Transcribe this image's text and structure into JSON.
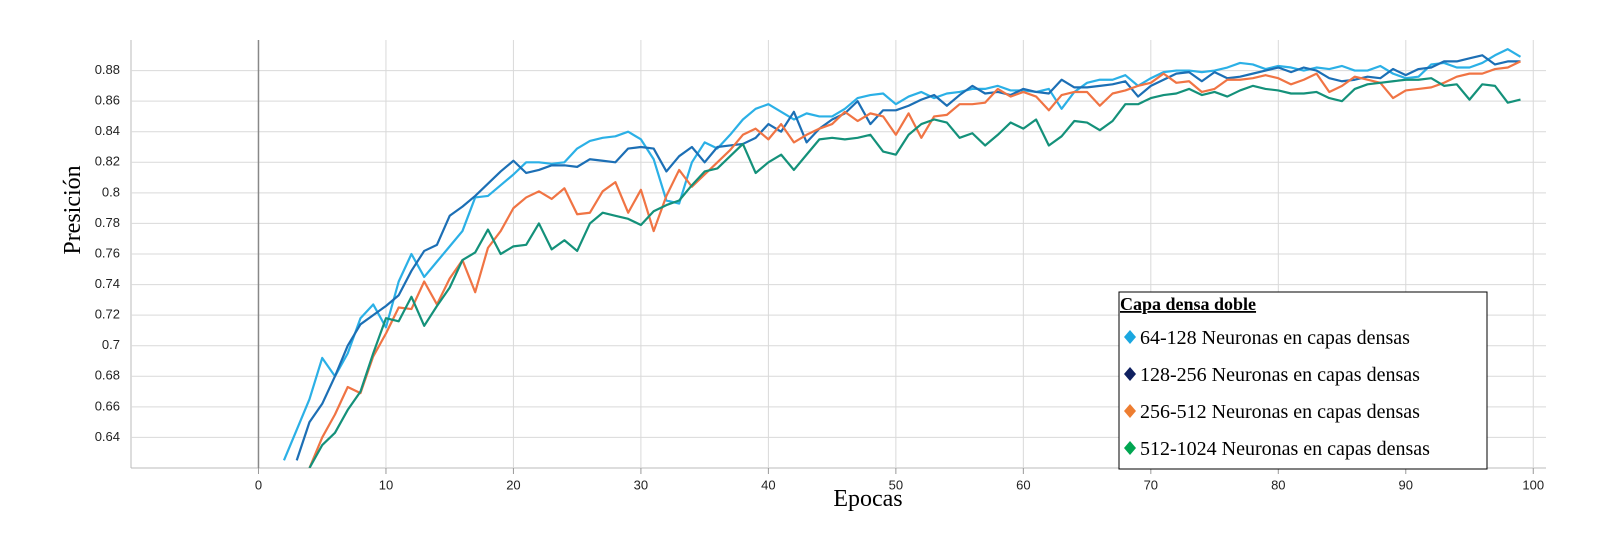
{
  "chart_data": {
    "type": "line",
    "x_label": "Epocas",
    "y_label": "Presición",
    "legend_title": "Capa densa doble",
    "xlim": [
      -10,
      101
    ],
    "ylim": [
      0.62,
      0.9
    ],
    "xticks": [
      0,
      10,
      20,
      30,
      40,
      50,
      60,
      70,
      80,
      90,
      100
    ],
    "yticks": [
      0.64,
      0.66,
      0.68,
      0.7,
      0.72,
      0.74,
      0.76,
      0.78,
      0.8,
      0.82,
      0.84,
      0.86,
      0.88
    ],
    "grid": true,
    "legend": "lower right",
    "x": [
      2,
      3,
      4,
      5,
      6,
      7,
      8,
      9,
      10,
      11,
      12,
      13,
      14,
      15,
      16,
      17,
      18,
      19,
      20,
      21,
      22,
      23,
      24,
      25,
      26,
      27,
      28,
      29,
      30,
      31,
      32,
      33,
      34,
      35,
      36,
      37,
      38,
      39,
      40,
      41,
      42,
      43,
      44,
      45,
      46,
      47,
      48,
      49,
      50,
      51,
      52,
      53,
      54,
      55,
      56,
      57,
      58,
      59,
      60,
      61,
      62,
      63,
      64,
      65,
      66,
      67,
      68,
      69,
      70,
      71,
      72,
      73,
      74,
      75,
      76,
      77,
      78,
      79,
      80,
      81,
      82,
      83,
      84,
      85,
      86,
      87,
      88,
      89,
      90,
      91,
      92,
      93,
      94,
      95,
      96,
      97,
      98,
      99
    ],
    "series": [
      {
        "name": "64-128 Neuronas en capas densas",
        "color": "#2bb0e6",
        "marker_color": "#1aa7e0",
        "values": [
          0.625,
          0.645,
          0.665,
          0.692,
          0.68,
          0.695,
          0.718,
          0.727,
          0.712,
          0.742,
          0.76,
          0.745,
          0.755,
          0.765,
          0.775,
          0.797,
          0.798,
          0.805,
          0.812,
          0.82,
          0.82,
          0.819,
          0.82,
          0.829,
          0.834,
          0.836,
          0.837,
          0.84,
          0.835,
          0.822,
          0.795,
          0.793,
          0.82,
          0.833,
          0.829,
          0.838,
          0.848,
          0.855,
          0.858,
          0.853,
          0.848,
          0.852,
          0.85,
          0.85,
          0.855,
          0.862,
          0.864,
          0.865,
          0.858,
          0.863,
          0.866,
          0.862,
          0.865,
          0.866,
          0.868,
          0.868,
          0.87,
          0.867,
          0.867,
          0.866,
          0.868,
          0.855,
          0.866,
          0.872,
          0.874,
          0.874,
          0.877,
          0.87,
          0.875,
          0.879,
          0.88,
          0.88,
          0.879,
          0.88,
          0.882,
          0.885,
          0.884,
          0.881,
          0.883,
          0.882,
          0.88,
          0.882,
          0.881,
          0.883,
          0.88,
          0.88,
          0.883,
          0.878,
          0.875,
          0.876,
          0.884,
          0.885,
          0.882,
          0.882,
          0.885,
          0.89,
          0.894,
          0.889
        ]
      },
      {
        "name": "128-256 Neuronas en capas densas",
        "color": "#1c6fb5",
        "marker_color": "#0f2060",
        "values": [
          null,
          0.625,
          0.65,
          0.662,
          0.68,
          0.7,
          0.714,
          0.72,
          0.726,
          0.733,
          0.749,
          0.762,
          0.766,
          0.785,
          0.791,
          0.798,
          0.806,
          0.814,
          0.821,
          0.813,
          0.815,
          0.818,
          0.818,
          0.817,
          0.822,
          0.821,
          0.82,
          0.829,
          0.83,
          0.829,
          0.814,
          0.824,
          0.83,
          0.82,
          0.83,
          0.831,
          0.832,
          0.836,
          0.845,
          0.84,
          0.853,
          0.833,
          0.842,
          0.848,
          0.852,
          0.86,
          0.845,
          0.854,
          0.854,
          0.857,
          0.861,
          0.864,
          0.857,
          0.864,
          0.87,
          0.865,
          0.866,
          0.864,
          0.868,
          0.866,
          0.865,
          0.874,
          0.869,
          0.869,
          0.87,
          0.871,
          0.873,
          0.863,
          0.87,
          0.874,
          0.878,
          0.879,
          0.873,
          0.879,
          0.875,
          0.876,
          0.878,
          0.88,
          0.882,
          0.879,
          0.882,
          0.88,
          0.875,
          0.873,
          0.874,
          0.876,
          0.875,
          0.881,
          0.877,
          0.881,
          0.882,
          0.886,
          0.886,
          0.888,
          0.89,
          0.884,
          0.886,
          0.886
        ]
      },
      {
        "name": "256-512 Neuronas en capas densas",
        "color": "#f07444",
        "marker_color": "#ed7d31",
        "values": [
          null,
          null,
          0.62,
          0.64,
          0.655,
          0.673,
          0.669,
          0.693,
          0.708,
          0.725,
          0.724,
          0.742,
          0.727,
          0.744,
          0.756,
          0.735,
          0.764,
          0.775,
          0.79,
          0.797,
          0.801,
          0.796,
          0.803,
          0.786,
          0.787,
          0.801,
          0.807,
          0.787,
          0.802,
          0.775,
          0.798,
          0.815,
          0.804,
          0.812,
          0.82,
          0.828,
          0.838,
          0.842,
          0.835,
          0.845,
          0.833,
          0.838,
          0.842,
          0.845,
          0.853,
          0.847,
          0.852,
          0.85,
          0.838,
          0.852,
          0.836,
          0.85,
          0.851,
          0.858,
          0.858,
          0.859,
          0.868,
          0.863,
          0.866,
          0.863,
          0.854,
          0.864,
          0.866,
          0.866,
          0.857,
          0.865,
          0.867,
          0.87,
          0.872,
          0.878,
          0.872,
          0.873,
          0.866,
          0.868,
          0.874,
          0.874,
          0.875,
          0.877,
          0.875,
          0.871,
          0.874,
          0.878,
          0.866,
          0.87,
          0.876,
          0.874,
          0.872,
          0.862,
          0.867,
          0.868,
          0.869,
          0.872,
          0.876,
          0.878,
          0.878,
          0.881,
          0.882,
          0.886
        ]
      },
      {
        "name": "512-1024 Neuronas en capas densas",
        "color": "#14917a",
        "marker_color": "#00a651",
        "values": [
          null,
          null,
          0.62,
          0.635,
          0.643,
          0.658,
          0.67,
          0.695,
          0.718,
          0.716,
          0.732,
          0.713,
          0.726,
          0.738,
          0.756,
          0.761,
          0.776,
          0.76,
          0.765,
          0.766,
          0.78,
          0.763,
          0.769,
          0.762,
          0.78,
          0.787,
          0.785,
          0.783,
          0.779,
          0.788,
          0.792,
          0.795,
          0.805,
          0.814,
          0.816,
          0.824,
          0.832,
          0.813,
          0.82,
          0.825,
          0.815,
          0.825,
          0.835,
          0.836,
          0.835,
          0.836,
          0.838,
          0.827,
          0.825,
          0.838,
          0.845,
          0.848,
          0.846,
          0.836,
          0.839,
          0.831,
          0.838,
          0.846,
          0.842,
          0.848,
          0.831,
          0.837,
          0.847,
          0.846,
          0.841,
          0.847,
          0.858,
          0.858,
          0.862,
          0.864,
          0.865,
          0.868,
          0.864,
          0.866,
          0.863,
          0.867,
          0.87,
          0.868,
          0.867,
          0.865,
          0.865,
          0.866,
          0.862,
          0.86,
          0.868,
          0.871,
          0.872,
          0.873,
          0.874,
          0.874,
          0.875,
          0.87,
          0.871,
          0.861,
          0.871,
          0.87,
          0.859,
          0.861
        ]
      }
    ]
  }
}
